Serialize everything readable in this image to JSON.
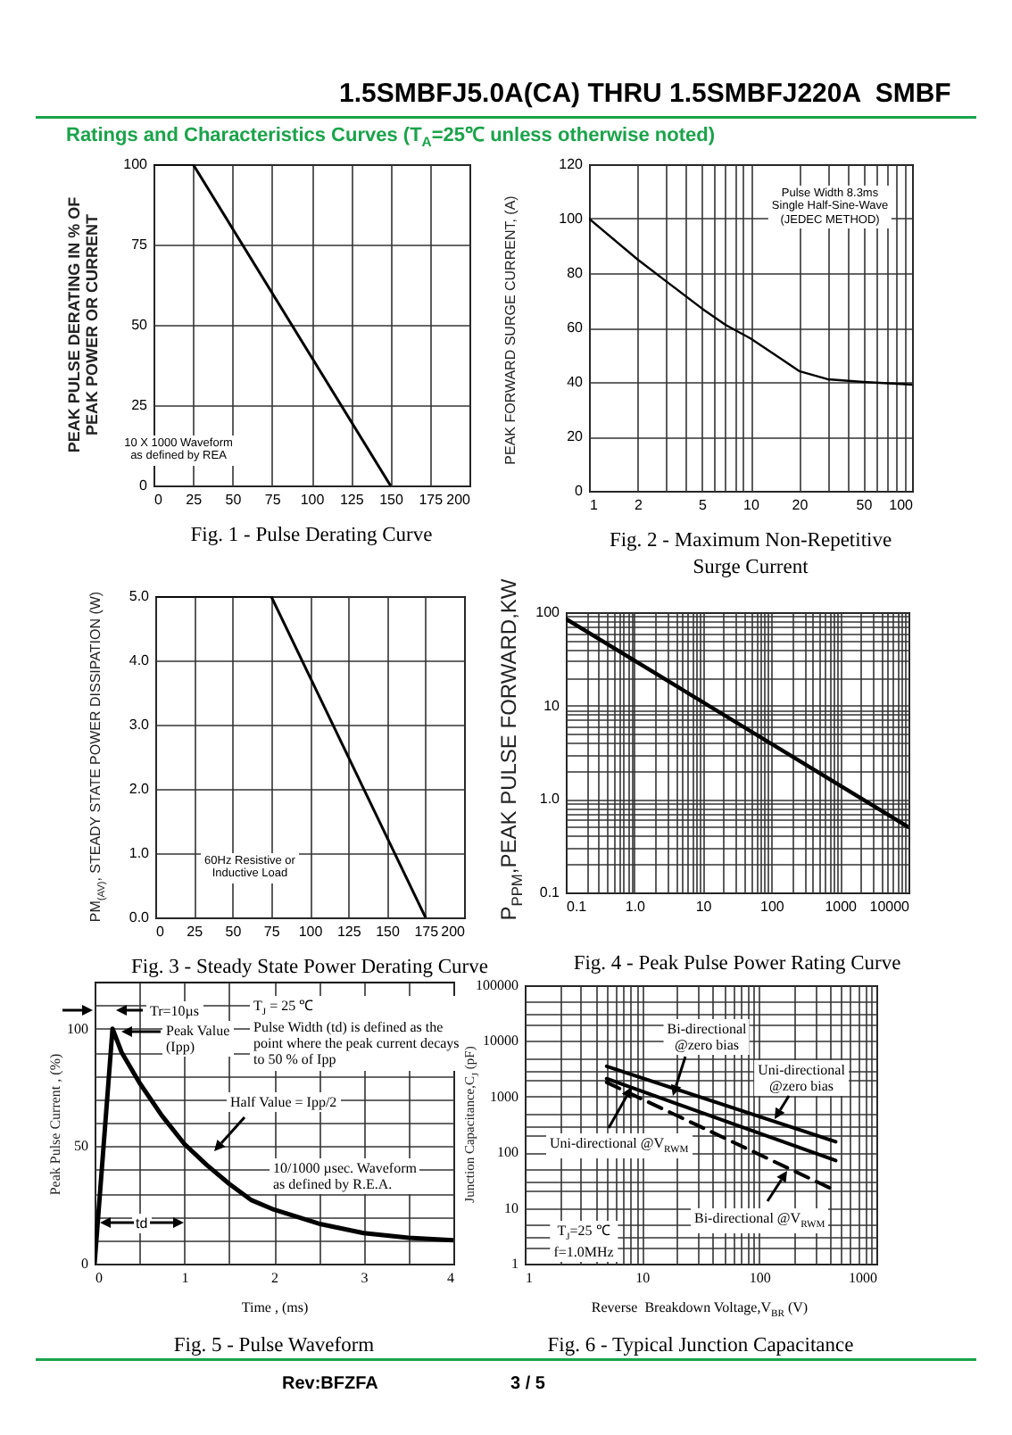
{
  "chart_data": [
    {
      "type": "line",
      "title": "Fig. 1 - Pulse Derating Curve",
      "ylabel": "PEAK PULSE DERATING IN % OF\nPEAK POWER OR CURRENT",
      "x": [
        0,
        25,
        150
      ],
      "values": [
        100,
        100,
        0
      ],
      "color": "#000000",
      "xlim": [
        0,
        200
      ],
      "xticks": [
        0,
        25,
        50,
        75,
        100,
        125,
        150,
        175,
        200
      ],
      "ylim": [
        0,
        100
      ],
      "yticks": [
        0,
        25,
        50,
        75,
        100
      ],
      "grid": true,
      "annotations": [
        "1.5SMBFJ5.0A(CA) THRU 1.5SMBFJ220A  SMBF",
        "Ratings and Characteristics Curves (T$_{A}$=25℃ unless otherwise noted)",
        "10 X 1000 Waveform\nas defined by REA"
      ]
    },
    {
      "type": "line",
      "title": "Fig. 2 - Maximum Non-Repetitive\nSurge Current",
      "ylabel": "PEAK FORWARD SURGE CURRENT, (A)",
      "x": [
        1,
        2,
        3,
        5,
        7,
        10,
        15,
        20,
        30,
        50,
        100
      ],
      "values": [
        100,
        85,
        77,
        67,
        61,
        56,
        49,
        44,
        41,
        40,
        39
      ],
      "color": "#000000",
      "log": "x",
      "xlim": [
        1,
        100
      ],
      "xticks": [
        1,
        2,
        {
          "value": 3,
          "label": null
        },
        {
          "value": 4,
          "label": null
        },
        5,
        {
          "value": 6,
          "label": null
        },
        {
          "value": 7,
          "label": null
        },
        {
          "value": 8,
          "label": null
        },
        {
          "value": 9,
          "label": null
        },
        10,
        20,
        {
          "value": 30,
          "label": null
        },
        {
          "value": 40,
          "label": null
        },
        50,
        {
          "value": 60,
          "label": null
        },
        {
          "value": 70,
          "label": null
        },
        {
          "value": 80,
          "label": null
        },
        {
          "value": 90,
          "label": null
        },
        100
      ],
      "ylim": [
        0,
        120
      ],
      "yticks": [
        0,
        20,
        40,
        60,
        80,
        100,
        120
      ],
      "grid": true,
      "annotations": [
        "Pulse Width 8.3ms\nSingle Half-Sine-Wave\n(JEDEC METHOD)"
      ]
    },
    {
      "type": "line",
      "title": "Fig. 3 - Steady State Power Derating Curve",
      "ylabel": "PM$_{(AV)}$, STEADY STATE POWER DISSIPATION (W)",
      "x": [
        0,
        75,
        175
      ],
      "values": [
        5,
        5,
        0
      ],
      "color": "#000000",
      "xlim": [
        0,
        200
      ],
      "xticks": [
        0,
        25,
        50,
        75,
        100,
        125,
        150,
        175,
        200
      ],
      "ylim": [
        0,
        5
      ],
      "yticks": [
        {
          "value": 0,
          "label": "0.0"
        },
        {
          "value": 1,
          "label": "1.0"
        },
        {
          "value": 2,
          "label": "2.0"
        },
        {
          "value": 3,
          "label": "3.0"
        },
        {
          "value": 4,
          "label": "4.0"
        },
        {
          "value": 5,
          "label": "5.0"
        }
      ],
      "grid": true,
      "annotations": [
        "60Hz Resistive or\nInductive Load"
      ]
    },
    {
      "type": "line",
      "title": "Fig. 4 - Peak Pulse Power Rating Curve",
      "ylabel": "P$_{PPM}$,PEAK PULSE FORWARD,KW",
      "x": [
        0.1,
        10000
      ],
      "values": [
        85,
        0.5
      ],
      "color": "#000000",
      "log": "xy",
      "xlim": [
        0.1,
        10000
      ],
      "xticks": [
        0.1,
        {
          "value": 0.2,
          "label": null
        },
        {
          "value": 0.3,
          "label": null
        },
        {
          "value": 0.4,
          "label": null
        },
        {
          "value": 0.5,
          "label": null
        },
        {
          "value": 0.6,
          "label": null
        },
        {
          "value": 0.7,
          "label": null
        },
        {
          "value": 0.8,
          "label": null
        },
        {
          "value": 0.9,
          "label": null
        },
        {
          "value": 1,
          "label": "1.0"
        },
        {
          "value": 2,
          "label": null
        },
        {
          "value": 3,
          "label": null
        },
        {
          "value": 4,
          "label": null
        },
        {
          "value": 5,
          "label": null
        },
        {
          "value": 6,
          "label": null
        },
        {
          "value": 7,
          "label": null
        },
        {
          "value": 8,
          "label": null
        },
        {
          "value": 9,
          "label": null
        },
        10,
        {
          "value": 20,
          "label": null
        },
        {
          "value": 30,
          "label": null
        },
        {
          "value": 40,
          "label": null
        },
        {
          "value": 50,
          "label": null
        },
        {
          "value": 60,
          "label": null
        },
        {
          "value": 70,
          "label": null
        },
        {
          "value": 80,
          "label": null
        },
        {
          "value": 90,
          "label": null
        },
        100,
        {
          "value": 200,
          "label": null
        },
        {
          "value": 300,
          "label": null
        },
        {
          "value": 400,
          "label": null
        },
        {
          "value": 500,
          "label": null
        },
        {
          "value": 600,
          "label": null
        },
        {
          "value": 700,
          "label": null
        },
        {
          "value": 800,
          "label": null
        },
        {
          "value": 900,
          "label": null
        },
        1000,
        {
          "value": 2000,
          "label": null
        },
        {
          "value": 3000,
          "label": null
        },
        {
          "value": 4000,
          "label": null
        },
        {
          "value": 5000,
          "label": null
        },
        {
          "value": 6000,
          "label": null
        },
        {
          "value": 7000,
          "label": null
        },
        {
          "value": 8000,
          "label": null
        },
        {
          "value": 9000,
          "label": null
        },
        10000
      ],
      "ylim": [
        0.1,
        100
      ],
      "yticks": [
        0.1,
        {
          "value": 0.2,
          "label": null
        },
        {
          "value": 0.3,
          "label": null
        },
        {
          "value": 0.4,
          "label": null
        },
        {
          "value": 0.5,
          "label": null
        },
        {
          "value": 0.6,
          "label": null
        },
        {
          "value": 0.7,
          "label": null
        },
        {
          "value": 0.8,
          "label": null
        },
        {
          "value": 0.9,
          "label": null
        },
        {
          "value": 1,
          "label": "1.0"
        },
        {
          "value": 2,
          "label": null
        },
        {
          "value": 3,
          "label": null
        },
        {
          "value": 4,
          "label": null
        },
        {
          "value": 5,
          "label": null
        },
        {
          "value": 6,
          "label": null
        },
        {
          "value": 7,
          "label": null
        },
        {
          "value": 8,
          "label": null
        },
        {
          "value": 9,
          "label": null
        },
        10,
        {
          "value": 20,
          "label": null
        },
        {
          "value": 30,
          "label": null
        },
        {
          "value": 40,
          "label": null
        },
        {
          "value": 50,
          "label": null
        },
        {
          "value": 60,
          "label": null
        },
        {
          "value": 70,
          "label": null
        },
        {
          "value": 80,
          "label": null
        },
        {
          "value": 90,
          "label": null
        },
        100
      ],
      "grid": true
    },
    {
      "type": "line",
      "title": "Fig. 5 - Pulse Waveform",
      "xlabel": "Time , (ms)",
      "ylabel": "Peak Pulse Current , (%)",
      "x": [
        0,
        0.2,
        0.3,
        0.5,
        0.75,
        1,
        1.25,
        1.5,
        1.75,
        2,
        2.5,
        3,
        3.5,
        4
      ],
      "values": [
        0,
        100,
        90,
        77,
        63,
        51,
        42,
        34,
        27,
        23,
        17,
        13,
        11,
        10
      ],
      "color": "#000000",
      "xlim": [
        0,
        4
      ],
      "xticks": [
        0,
        {
          "value": 0.5,
          "label": null
        },
        1,
        {
          "value": 1.5,
          "label": null
        },
        2,
        {
          "value": 2.5,
          "label": null
        },
        3,
        {
          "value": 3.5,
          "label": null
        },
        4
      ],
      "ylim": [
        0,
        120
      ],
      "yticks": [
        0,
        {
          "value": 10,
          "label": null
        },
        {
          "value": 20,
          "label": null
        },
        {
          "value": 30,
          "label": null
        },
        {
          "value": 40,
          "label": null
        },
        50,
        {
          "value": 60,
          "label": null
        },
        {
          "value": 70,
          "label": null
        },
        {
          "value": 80,
          "label": null
        },
        {
          "value": 90,
          "label": null
        },
        100,
        {
          "value": 110,
          "label": null
        }
      ],
      "grid": true,
      "annotations": [
        "Tr=10µs",
        "Peak Value\n(Ipp)",
        "T$_{J}$ = 25 ℃\nPulse Width (td) is defined as the\npoint where the peak current decays\nto 50 % of Ipp",
        "Half Value = Ipp/2",
        "10/1000 µsec. Waveform\nas defined by R.E.A.",
        "td"
      ]
    },
    {
      "type": "line",
      "title": "Fig. 6 - Typical Junction Capacitance",
      "xlabel": "Reverse  Breakdown Voltage,V$_{BR}$ (V)",
      "ylabel": "Junction Capacitance,C$_{J}$ (pF)",
      "log": "xy",
      "xlim": [
        1,
        1000
      ],
      "xticks": [
        1,
        {
          "value": 2,
          "label": null
        },
        {
          "value": 3,
          "label": null
        },
        {
          "value": 4,
          "label": null
        },
        {
          "value": 5,
          "label": null
        },
        {
          "value": 6,
          "label": null
        },
        {
          "value": 7,
          "label": null
        },
        {
          "value": 8,
          "label": null
        },
        {
          "value": 9,
          "label": null
        },
        10,
        {
          "value": 20,
          "label": null
        },
        {
          "value": 30,
          "label": null
        },
        {
          "value": 40,
          "label": null
        },
        {
          "value": 50,
          "label": null
        },
        {
          "value": 60,
          "label": null
        },
        {
          "value": 70,
          "label": null
        },
        {
          "value": 80,
          "label": null
        },
        {
          "value": 90,
          "label": null
        },
        100,
        {
          "value": 200,
          "label": null
        },
        {
          "value": 300,
          "label": null
        },
        {
          "value": 400,
          "label": null
        },
        {
          "value": 500,
          "label": null
        },
        {
          "value": 600,
          "label": null
        },
        {
          "value": 700,
          "label": null
        },
        {
          "value": 800,
          "label": null
        },
        {
          "value": 900,
          "label": null
        },
        1000
      ],
      "ylim": [
        1,
        100000
      ],
      "yticks": [
        1,
        {
          "value": 2,
          "label": null
        },
        {
          "value": 3,
          "label": null
        },
        {
          "value": 5,
          "label": null
        },
        10,
        {
          "value": 20,
          "label": null
        },
        {
          "value": 30,
          "label": null
        },
        {
          "value": 50,
          "label": null
        },
        100,
        {
          "value": 200,
          "label": null
        },
        {
          "value": 300,
          "label": null
        },
        {
          "value": 500,
          "label": null
        },
        1000,
        {
          "value": 2000,
          "label": null
        },
        {
          "value": 3000,
          "label": null
        },
        {
          "value": 5000,
          "label": null
        },
        10000,
        {
          "value": 20000,
          "label": null
        },
        {
          "value": 30000,
          "label": null
        },
        {
          "value": 50000,
          "label": null
        },
        100000
      ],
      "grid": true,
      "series": [
        {
          "color": "#000000",
          "x": [
            5,
            450
          ],
          "values": [
            3500,
            155
          ]
        },
        {
          "color": "#000000",
          "x": [
            5,
            450
          ],
          "values": [
            2100,
            71
          ]
        },
        {
          "color": "#000000",
          "line_style": "dashed",
          "x": [
            5,
            400
          ],
          "values": [
            1800,
            23
          ]
        }
      ],
      "annotations": [
        "Bi-directional\n@zero bias",
        "Uni-directional\n@zero bias",
        "Uni-directional @V$_{RWM}$",
        "Bi-directional @V$_{RWM}$",
        "T$_{J}$=25 ℃\nf=1.0MHz",
        "Rev:BFZFA",
        "3 / 5"
      ]
    }
  ]
}
